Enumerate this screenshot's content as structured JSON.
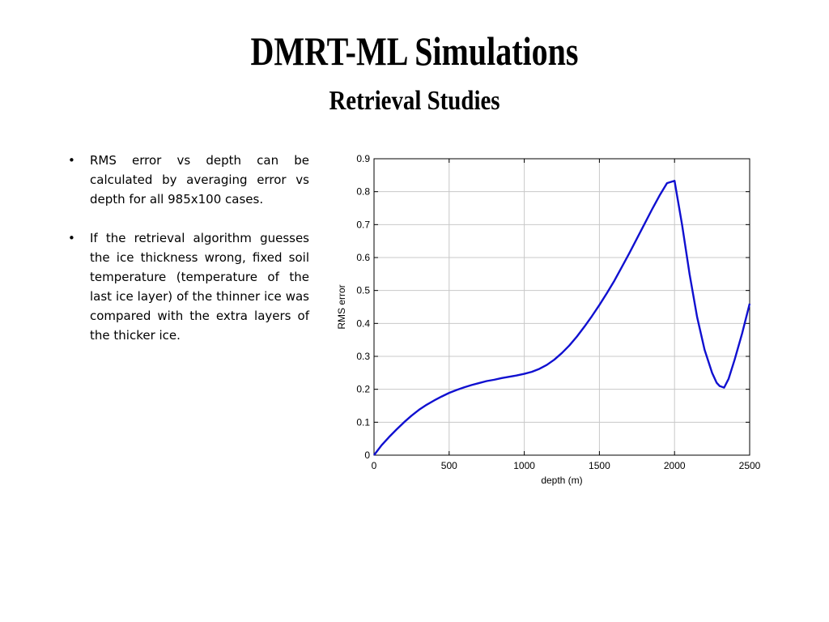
{
  "slide": {
    "title": "DMRT-ML Simulations",
    "subtitle": "Retrieval Studies",
    "bullets": [
      {
        "marker": "•",
        "text": "RMS error vs depth can be calculated by averaging error vs depth for all 985x100 cases."
      },
      {
        "marker": "•",
        "text": "If the retrieval algorithm guesses the ice thickness wrong, fixed soil temperature (temperature of the last ice layer) of the thinner ice was compared with the extra layers of the thicker ice."
      }
    ]
  },
  "chart_data": {
    "type": "line",
    "title": "",
    "xlabel": "depth (m)",
    "ylabel": "RMS error",
    "xlim": [
      0,
      2500
    ],
    "ylim": [
      0,
      0.9
    ],
    "xticks": [
      0,
      500,
      1000,
      1500,
      2000,
      2500
    ],
    "yticks": [
      0,
      0.1,
      0.2,
      0.3,
      0.4,
      0.5,
      0.6,
      0.7,
      0.8,
      0.9
    ],
    "grid": true,
    "line_color": "#1010d0",
    "series": [
      {
        "x": [
          0,
          50,
          100,
          150,
          200,
          250,
          300,
          350,
          400,
          450,
          500,
          550,
          600,
          650,
          700,
          750,
          800,
          850,
          900,
          950,
          1000,
          1050,
          1100,
          1150,
          1200,
          1250,
          1300,
          1350,
          1400,
          1450,
          1500,
          1550,
          1600,
          1650,
          1700,
          1750,
          1800,
          1850,
          1900,
          1950,
          2000,
          2050,
          2100,
          2150,
          2200,
          2250,
          2280,
          2300,
          2330,
          2360,
          2400,
          2450,
          2500
        ],
        "y": [
          0.0,
          0.03,
          0.055,
          0.078,
          0.1,
          0.12,
          0.138,
          0.153,
          0.166,
          0.178,
          0.189,
          0.198,
          0.206,
          0.213,
          0.219,
          0.225,
          0.229,
          0.234,
          0.238,
          0.242,
          0.247,
          0.253,
          0.262,
          0.274,
          0.29,
          0.31,
          0.333,
          0.36,
          0.39,
          0.422,
          0.456,
          0.492,
          0.53,
          0.572,
          0.614,
          0.658,
          0.702,
          0.746,
          0.788,
          0.826,
          0.833,
          0.7,
          0.55,
          0.42,
          0.32,
          0.25,
          0.22,
          0.21,
          0.205,
          0.232,
          0.29,
          0.37,
          0.46
        ]
      }
    ]
  }
}
